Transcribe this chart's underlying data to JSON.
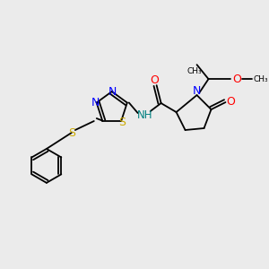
{
  "bg_color": "#ebebeb",
  "atom_colors": {
    "N": "#0000ff",
    "O": "#ff0000",
    "S": "#ccaa00",
    "C": "#000000",
    "NH": "#008080"
  },
  "bond_color": "#000000",
  "lw": 1.3
}
